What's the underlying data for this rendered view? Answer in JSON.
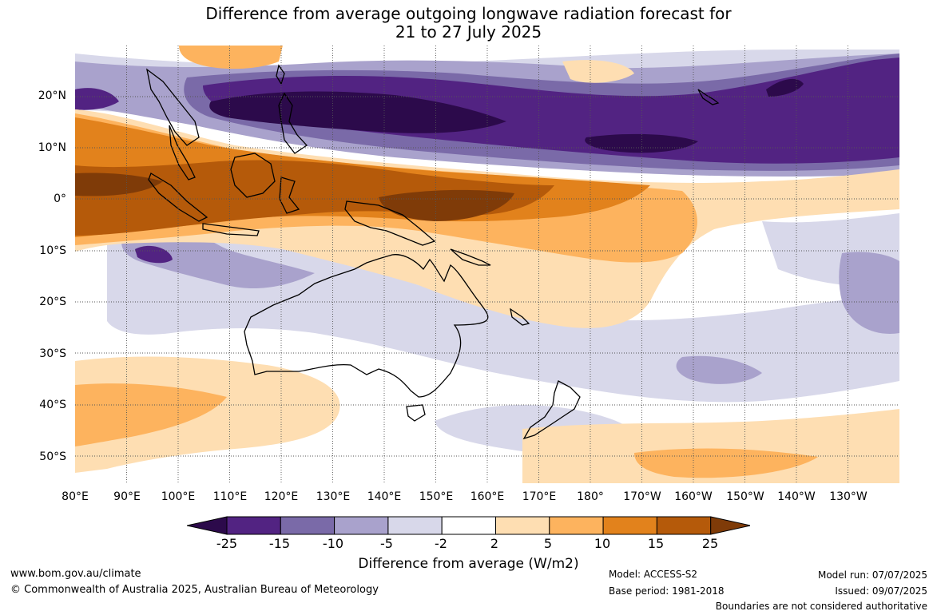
{
  "title": {
    "line1": "Difference from average outgoing longwave radiation forecast for",
    "line2": "21 to 27 July 2025"
  },
  "lat_labels": [
    "20°N",
    "10°N",
    "0°",
    "10°S",
    "20°S",
    "30°S",
    "40°S",
    "50°S"
  ],
  "lon_labels": [
    "80°E",
    "90°E",
    "100°E",
    "110°E",
    "120°E",
    "130°E",
    "140°E",
    "150°E",
    "160°E",
    "170°E",
    "180°",
    "170°W",
    "160°W",
    "150°W",
    "140°W",
    "130°W"
  ],
  "colorbar": {
    "ticks": [
      "-25",
      "-15",
      "-10",
      "-5",
      "-2",
      "2",
      "5",
      "10",
      "15",
      "25"
    ],
    "colors": [
      "#2c0a4b",
      "#522382",
      "#7a6aa8",
      "#a9a2cc",
      "#d8d8ea",
      "#ffffff",
      "#fedeb2",
      "#fdb35e",
      "#e2821c",
      "#b55a0a",
      "#7f3b08"
    ],
    "title": "Difference from average (W/m2)"
  },
  "footer": {
    "url": "www.bom.gov.au/climate",
    "copyright": "© Commonwealth of Australia 2025, Australian Bureau of Meteorology",
    "model": "Model: ACCESS-S2",
    "base_period": "Base period: 1981-2018",
    "model_run": "Model run: 07/07/2025",
    "issued": "Issued: 09/07/2025",
    "disclaimer": "Boundaries are not considered authoritative"
  }
}
